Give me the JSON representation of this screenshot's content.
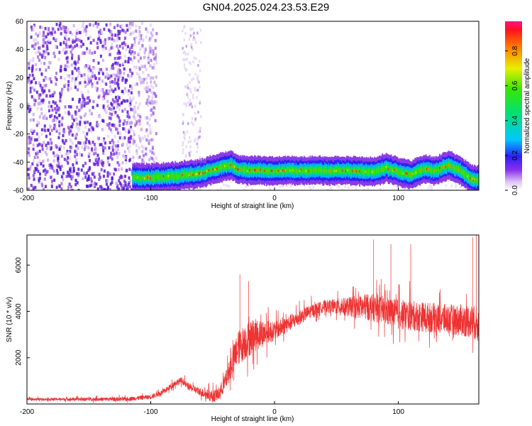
{
  "title": "GN04.2025.024.23.53.E29",
  "chart_data": [
    {
      "type": "heatmap",
      "xlabel": "Height of straight line (km)",
      "ylabel": "Frequency (Hz)",
      "xlim": [
        -200,
        165
      ],
      "ylim": [
        -60,
        60
      ],
      "xticks": [
        -200,
        -100,
        0,
        100
      ],
      "yticks": [
        -60,
        -40,
        -20,
        0,
        20,
        40,
        60
      ],
      "colorbar": {
        "label": "Normalized spectral amplitude",
        "range": [
          0,
          0.97
        ],
        "ticks": [
          "0.0",
          "0.2",
          "0.4",
          "0.6",
          "0.8"
        ]
      },
      "signal_track": {
        "x": [
          -115,
          -100,
          -80,
          -60,
          -45,
          -35,
          -30,
          -20,
          0,
          20,
          40,
          60,
          80,
          90,
          100,
          110,
          120,
          130,
          140,
          150,
          158,
          165
        ],
        "frequency": [
          -51,
          -51,
          -50,
          -48,
          -44,
          -42,
          -45,
          -46,
          -46,
          -46,
          -46,
          -46,
          -47,
          -44,
          -47,
          -49,
          -45,
          -46,
          -42,
          -46,
          -52,
          -53
        ]
      },
      "noise_region_x": [
        -200,
        -100
      ],
      "faint_band_x": [
        -75,
        -60
      ]
    },
    {
      "type": "line",
      "xlabel": "Height of straight line (km)",
      "ylabel": "SNR (10 * v/v)",
      "xlim": [
        -200,
        165
      ],
      "ylim": [
        0,
        7300
      ],
      "xticks": [
        -200,
        -100,
        0,
        100
      ],
      "yticks": [
        2000,
        4000,
        6000
      ],
      "envelope": {
        "x": [
          -200,
          -120,
          -100,
          -90,
          -80,
          -75,
          -70,
          -60,
          -50,
          -45,
          -40,
          -35,
          -30,
          -20,
          -10,
          0,
          10,
          20,
          30,
          40,
          60,
          80,
          100,
          120,
          140,
          160,
          165
        ],
        "y": [
          200,
          200,
          300,
          500,
          900,
          1000,
          750,
          500,
          300,
          400,
          900,
          1600,
          2300,
          2800,
          3000,
          3100,
          3400,
          3700,
          4000,
          4200,
          4150,
          4100,
          3800,
          3700,
          3600,
          3500,
          3300
        ]
      },
      "noise_amplitude": {
        "x": [
          -200,
          -100,
          -60,
          -40,
          -30,
          -20,
          0,
          40,
          80,
          100,
          140,
          165
        ],
        "y": [
          100,
          200,
          350,
          700,
          1500,
          1600,
          800,
          500,
          1200,
          1300,
          1300,
          1500
        ]
      },
      "peaks": [
        {
          "x": -28,
          "y": 5600
        },
        {
          "x": -21,
          "y": 5300
        },
        {
          "x": 80,
          "y": 7100
        },
        {
          "x": 94,
          "y": 6900
        },
        {
          "x": 110,
          "y": 6900
        },
        {
          "x": 160,
          "y": 7200
        },
        {
          "x": 163,
          "y": 7300
        }
      ],
      "color": "#ee3333"
    }
  ]
}
